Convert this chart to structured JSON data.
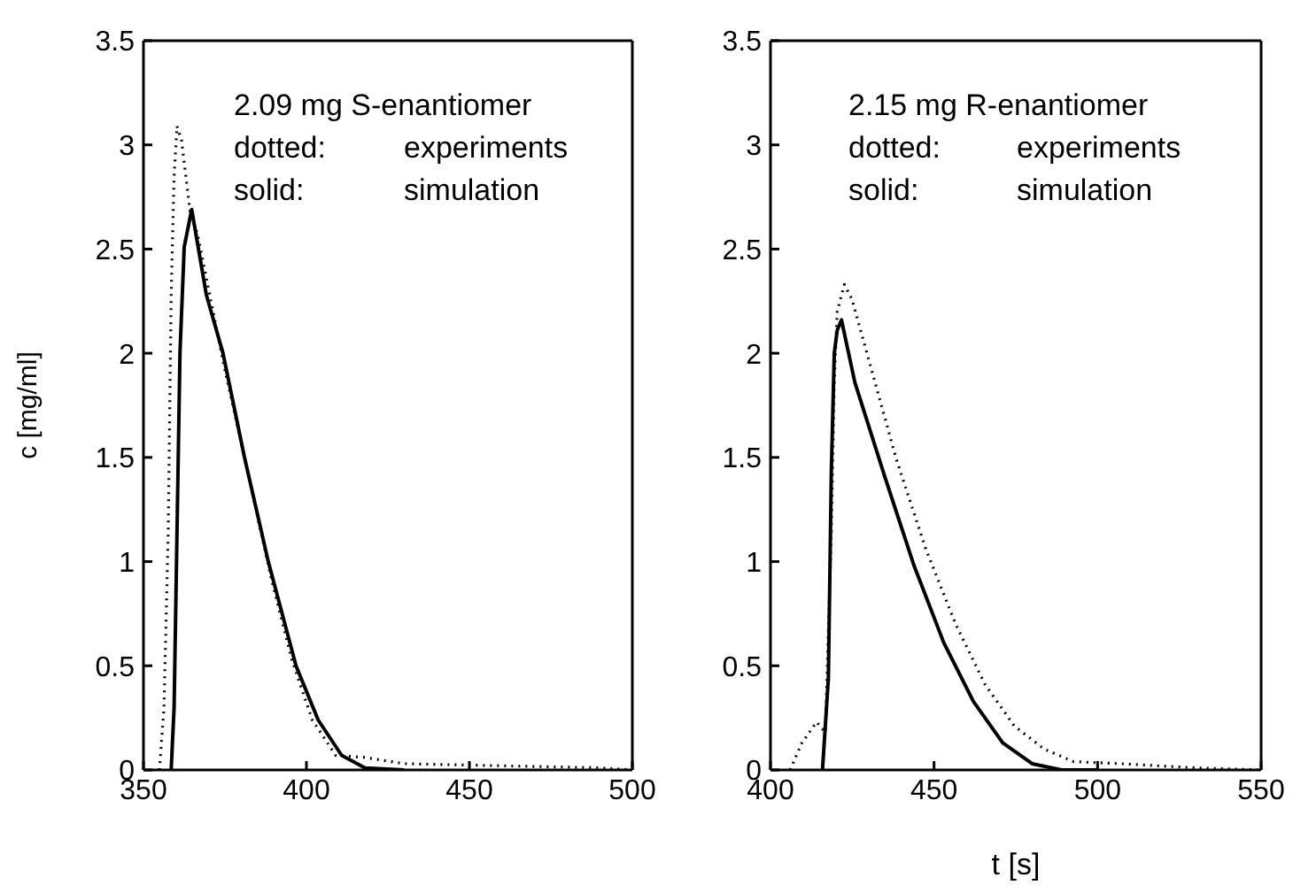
{
  "chart_data": [
    {
      "type": "line",
      "ylabel": "c [mg/ml]",
      "xlim": [
        350,
        500
      ],
      "xticks": [
        350,
        400,
        450,
        500
      ],
      "ylim": [
        0,
        3.5
      ],
      "yticks": [
        0,
        0.5,
        1,
        1.5,
        2,
        2.5,
        3,
        3.5
      ],
      "annotations": [
        "2.09 mg S-enantiomer",
        "dotted:",
        "experiments",
        "solid:",
        "simulation"
      ],
      "series": [
        {
          "color": "#000000",
          "line_style": "dotted",
          "x": [
            354.9,
            356.3,
            357.6,
            358.5,
            359.4,
            360.3,
            361.7,
            363,
            364.3,
            366.6,
            374.7,
            382,
            389.2,
            395.5,
            401.8,
            409,
            418,
            430,
            460,
            490,
            500
          ],
          "values": [
            0,
            0.3,
            1.15,
            2.28,
            2.85,
            3.09,
            3.02,
            2.85,
            2.68,
            2.57,
            1.94,
            1.43,
            0.92,
            0.53,
            0.24,
            0.07,
            0.06,
            0.03,
            0.02,
            0.01,
            0
          ]
        },
        {
          "color": "#000000",
          "line_style": "solid",
          "x": [
            358.5,
            359.4,
            360.3,
            361.2,
            362.5,
            364.8,
            369.3,
            374.4,
            381,
            388.3,
            396.8,
            403.6,
            410.8,
            418,
            430
          ],
          "values": [
            0,
            0.3,
            1.15,
            2.0,
            2.51,
            2.69,
            2.28,
            2.0,
            1.5,
            1.0,
            0.5,
            0.24,
            0.07,
            0.01,
            0
          ]
        }
      ]
    },
    {
      "type": "line",
      "xlabel": "t [s]",
      "xlim": [
        400,
        550
      ],
      "xticks": [
        400,
        450,
        500,
        550
      ],
      "ylim": [
        0,
        3.5
      ],
      "yticks": [
        0,
        0.5,
        1,
        1.5,
        2,
        2.5,
        3,
        3.5
      ],
      "annotations": [
        "2.15 mg R-enantiomer",
        "dotted:",
        "experiments",
        "solid:",
        "simulation"
      ],
      "series": [
        {
          "color": "#000000",
          "line_style": "dotted",
          "x": [
            406,
            409.6,
            414.1,
            416.8,
            418.6,
            419.5,
            420.4,
            422.6,
            424.9,
            429.5,
            438.5,
            447.5,
            456.6,
            465.6,
            474.6,
            483.7,
            492.7,
            507,
            530,
            550
          ],
          "values": [
            0,
            0.13,
            0.23,
            0.18,
            1.15,
            1.86,
            2.2,
            2.33,
            2.26,
            2.0,
            1.49,
            1.06,
            0.7,
            0.41,
            0.21,
            0.1,
            0.04,
            0.03,
            0.01,
            0
          ]
        },
        {
          "color": "#000000",
          "line_style": "solid",
          "x": [
            415.9,
            417.7,
            418.6,
            419.5,
            420.4,
            421.7,
            425.8,
            434.9,
            443.9,
            453,
            462,
            471,
            480,
            489,
            500
          ],
          "values": [
            0,
            0.44,
            1.43,
            2.0,
            2.11,
            2.16,
            1.86,
            1.41,
            0.98,
            0.61,
            0.33,
            0.13,
            0.03,
            0,
            0
          ]
        }
      ]
    }
  ]
}
